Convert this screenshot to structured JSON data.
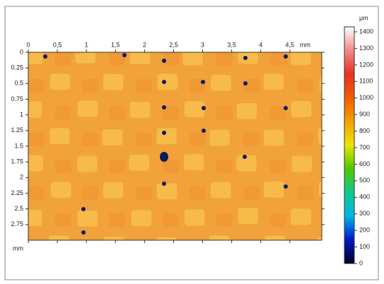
{
  "chart_data": {
    "type": "heatmap",
    "x_unit": "mm",
    "y_unit": "mm",
    "colorbar_unit": "μm",
    "xlim": [
      0,
      5.05
    ],
    "ylim": [
      0,
      3.0
    ],
    "xticks": [
      0,
      {
        "value": 0.5,
        "label": "0,5"
      },
      1,
      {
        "value": 1.5,
        "label": "1,5"
      },
      2,
      {
        "value": 2.5,
        "label": "2,5"
      },
      3,
      {
        "value": 3.5,
        "label": "3,5"
      },
      4,
      {
        "value": 4.5,
        "label": "4,5"
      }
    ],
    "yticks": [
      0,
      0.25,
      0.5,
      0.75,
      1,
      1.25,
      1.5,
      1.75,
      2,
      2.25,
      2.5,
      2.75
    ],
    "zlim": [
      0,
      1430
    ],
    "zticks": [
      0,
      100,
      200,
      300,
      400,
      500,
      600,
      700,
      800,
      900,
      1000,
      1100,
      1200,
      1300,
      1400
    ],
    "colormap": [
      "#000020",
      "#0018c8",
      "#00b4e6",
      "#10c890",
      "#50c800",
      "#e8e800",
      "#f8a000",
      "#f06000",
      "#e83020",
      "#f08888",
      "#ffffff"
    ]
  }
}
